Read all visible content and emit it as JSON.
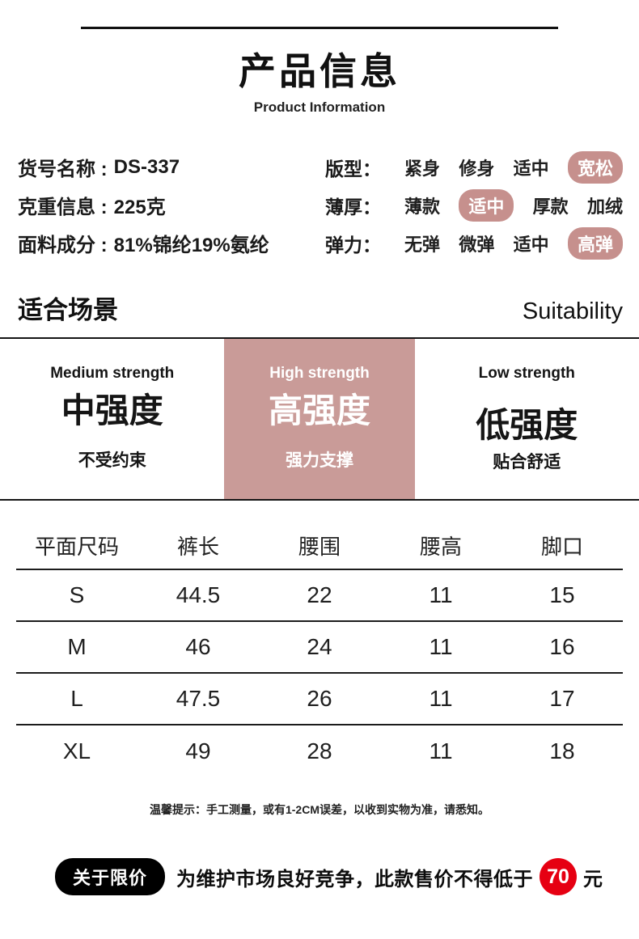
{
  "header": {
    "title": "产品信息",
    "subtitle": "Product Information"
  },
  "specs": {
    "left": [
      {
        "label": "货号名称 :",
        "value": "DS-337"
      },
      {
        "label": "克重信息 :",
        "value": "225克"
      },
      {
        "label": "面料成分 :",
        "value": "81%锦纶19%氨纶"
      }
    ],
    "right": [
      {
        "label": "版型：",
        "options": [
          "紧身",
          "修身",
          "适中",
          "宽松"
        ],
        "selected_index": 3
      },
      {
        "label": "薄厚：",
        "options": [
          "薄款",
          "适中",
          "厚款",
          "加绒"
        ],
        "selected_index": 1
      },
      {
        "label": "弹力：",
        "options": [
          "无弹",
          "微弹",
          "适中",
          "高弹"
        ],
        "selected_index": 3
      }
    ]
  },
  "suitability": {
    "title_zh": "适合场景",
    "title_en": "Suitability",
    "columns": [
      {
        "en": "Medium strength",
        "zh": "中强度",
        "desc": "不受约束",
        "highlighted": false
      },
      {
        "en": "High strength",
        "zh": "高强度",
        "desc": "强力支撑",
        "highlighted": true
      },
      {
        "en": "Low strength",
        "zh": "低强度",
        "desc": "贴合舒适",
        "highlighted": false
      }
    ]
  },
  "size_table": {
    "headers": [
      "平面尺码",
      "裤长",
      "腰围",
      "腰高",
      "脚口"
    ],
    "rows": [
      [
        "S",
        "44.5",
        "22",
        "11",
        "15"
      ],
      [
        "M",
        "46",
        "24",
        "11",
        "16"
      ],
      [
        "L",
        "47.5",
        "26",
        "11",
        "17"
      ],
      [
        "XL",
        "49",
        "28",
        "11",
        "18"
      ]
    ]
  },
  "note": "温馨提示：手工测量，或有1-2CM误差，以收到实物为准，请悉知。",
  "price_notice": {
    "badge": "关于限价",
    "text": "为维护市场良好竞争，此款售价不得低于",
    "price": "70",
    "unit": "元"
  },
  "colors": {
    "accent_badge": "#c6908d",
    "accent_band": "#c99b98",
    "price_red": "#e60012"
  }
}
